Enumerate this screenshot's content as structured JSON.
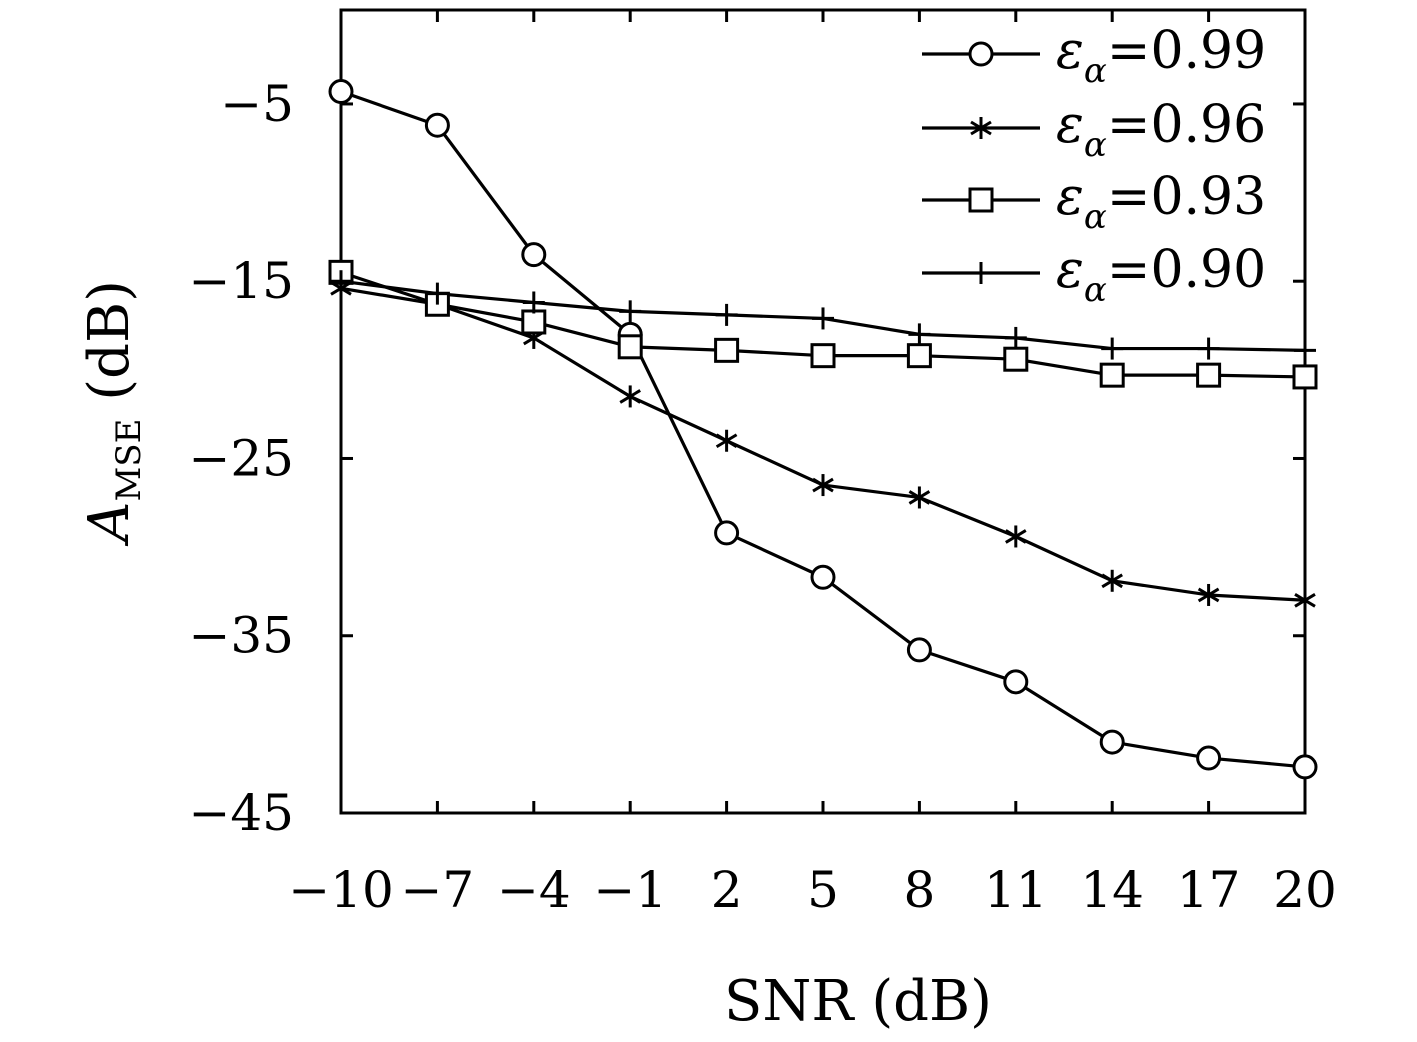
{
  "chart_data": {
    "type": "line",
    "xlabel": "SNR (dB)",
    "ylabel_main": "A",
    "ylabel_sub": "MSE",
    "ylabel_unit": " (dB)",
    "x": [
      -10,
      -7,
      -4,
      -1,
      2,
      5,
      8,
      11,
      14,
      17,
      20
    ],
    "xticks": [
      "−10",
      "−7",
      "−4",
      "−1",
      "2",
      "5",
      "8",
      "11",
      "14",
      "17",
      "20"
    ],
    "yticks": [
      "−5",
      "−15",
      "−25",
      "−35",
      "−45"
    ],
    "yticks_values": [
      -5,
      -15,
      -25,
      -35,
      -45
    ],
    "xlim": [
      -10,
      20
    ],
    "ylim": [
      -45,
      0.3
    ],
    "grid": false,
    "legend_position": "top-right",
    "series": [
      {
        "name": "0.99",
        "marker": "circle",
        "values": [
          -4.3,
          -6.2,
          -13.5,
          -18.0,
          -29.2,
          -31.7,
          -35.8,
          -37.6,
          -41.0,
          -41.9,
          -42.4
        ]
      },
      {
        "name": "0.96",
        "marker": "asterisk",
        "values": [
          -15.4,
          -16.3,
          -18.2,
          -21.5,
          -24.0,
          -26.5,
          -27.2,
          -29.4,
          -31.9,
          -32.7,
          -33.0
        ]
      },
      {
        "name": "0.93",
        "marker": "square",
        "values": [
          -14.5,
          -16.3,
          -17.3,
          -18.7,
          -18.9,
          -19.2,
          -19.2,
          -19.4,
          -20.3,
          -20.3,
          -20.4
        ]
      },
      {
        "name": "0.90",
        "marker": "plus",
        "values": [
          -15.0,
          -15.7,
          -16.2,
          -16.7,
          -16.9,
          -17.1,
          -18.0,
          -18.2,
          -18.8,
          -18.8,
          -18.9
        ]
      }
    ],
    "legend_symbol": "ε",
    "legend_subscript": "α",
    "legend_eq": "="
  }
}
